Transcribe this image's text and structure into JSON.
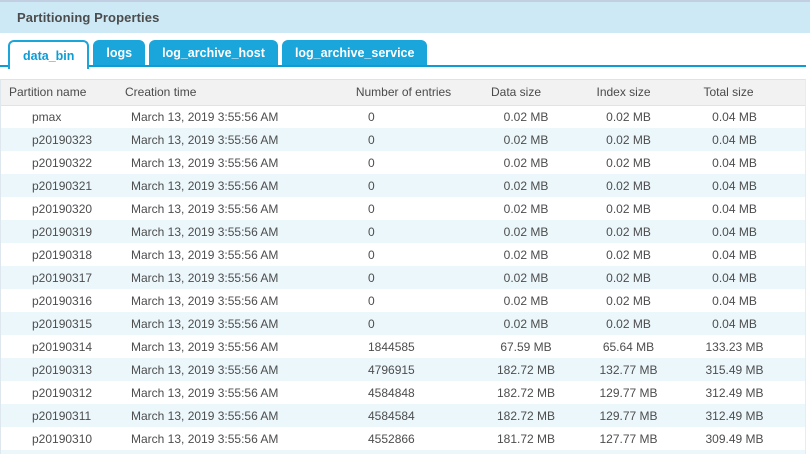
{
  "panel": {
    "title": "Partitioning Properties"
  },
  "tabs": [
    {
      "label": "data_bin",
      "active": true
    },
    {
      "label": "logs",
      "active": false
    },
    {
      "label": "log_archive_host",
      "active": false
    },
    {
      "label": "log_archive_service",
      "active": false
    }
  ],
  "table": {
    "columns": [
      "Partition name",
      "Creation time",
      "Number of entries",
      "Data size",
      "Index size",
      "Total size"
    ],
    "rows": [
      {
        "partition": "pmax",
        "creation_time": "March 13, 2019 3:55:56 AM",
        "entries": "0",
        "data_size": "0.02 MB",
        "index_size": "0.02 MB",
        "total_size": "0.04 MB"
      },
      {
        "partition": "p20190323",
        "creation_time": "March 13, 2019 3:55:56 AM",
        "entries": "0",
        "data_size": "0.02 MB",
        "index_size": "0.02 MB",
        "total_size": "0.04 MB"
      },
      {
        "partition": "p20190322",
        "creation_time": "March 13, 2019 3:55:56 AM",
        "entries": "0",
        "data_size": "0.02 MB",
        "index_size": "0.02 MB",
        "total_size": "0.04 MB"
      },
      {
        "partition": "p20190321",
        "creation_time": "March 13, 2019 3:55:56 AM",
        "entries": "0",
        "data_size": "0.02 MB",
        "index_size": "0.02 MB",
        "total_size": "0.04 MB"
      },
      {
        "partition": "p20190320",
        "creation_time": "March 13, 2019 3:55:56 AM",
        "entries": "0",
        "data_size": "0.02 MB",
        "index_size": "0.02 MB",
        "total_size": "0.04 MB"
      },
      {
        "partition": "p20190319",
        "creation_time": "March 13, 2019 3:55:56 AM",
        "entries": "0",
        "data_size": "0.02 MB",
        "index_size": "0.02 MB",
        "total_size": "0.04 MB"
      },
      {
        "partition": "p20190318",
        "creation_time": "March 13, 2019 3:55:56 AM",
        "entries": "0",
        "data_size": "0.02 MB",
        "index_size": "0.02 MB",
        "total_size": "0.04 MB"
      },
      {
        "partition": "p20190317",
        "creation_time": "March 13, 2019 3:55:56 AM",
        "entries": "0",
        "data_size": "0.02 MB",
        "index_size": "0.02 MB",
        "total_size": "0.04 MB"
      },
      {
        "partition": "p20190316",
        "creation_time": "March 13, 2019 3:55:56 AM",
        "entries": "0",
        "data_size": "0.02 MB",
        "index_size": "0.02 MB",
        "total_size": "0.04 MB"
      },
      {
        "partition": "p20190315",
        "creation_time": "March 13, 2019 3:55:56 AM",
        "entries": "0",
        "data_size": "0.02 MB",
        "index_size": "0.02 MB",
        "total_size": "0.04 MB"
      },
      {
        "partition": "p20190314",
        "creation_time": "March 13, 2019 3:55:56 AM",
        "entries": "1844585",
        "data_size": "67.59 MB",
        "index_size": "65.64 MB",
        "total_size": "133.23 MB"
      },
      {
        "partition": "p20190313",
        "creation_time": "March 13, 2019 3:55:56 AM",
        "entries": "4796915",
        "data_size": "182.72 MB",
        "index_size": "132.77 MB",
        "total_size": "315.49 MB"
      },
      {
        "partition": "p20190312",
        "creation_time": "March 13, 2019 3:55:56 AM",
        "entries": "4584848",
        "data_size": "182.72 MB",
        "index_size": "129.77 MB",
        "total_size": "312.49 MB"
      },
      {
        "partition": "p20190311",
        "creation_time": "March 13, 2019 3:55:56 AM",
        "entries": "4584584",
        "data_size": "182.72 MB",
        "index_size": "129.77 MB",
        "total_size": "312.49 MB"
      },
      {
        "partition": "p20190310",
        "creation_time": "March 13, 2019 3:55:56 AM",
        "entries": "4552866",
        "data_size": "181.72 MB",
        "index_size": "127.77 MB",
        "total_size": "309.49 MB"
      }
    ]
  },
  "colors": {
    "accent": "#0e9cd4",
    "tab_fill": "#1aa5db",
    "title_bar_bg": "#cde9f6",
    "header_row_bg": "#f2f2f3",
    "alt_row_bg": "#ecf7fc",
    "text": "#4d4d4d"
  }
}
